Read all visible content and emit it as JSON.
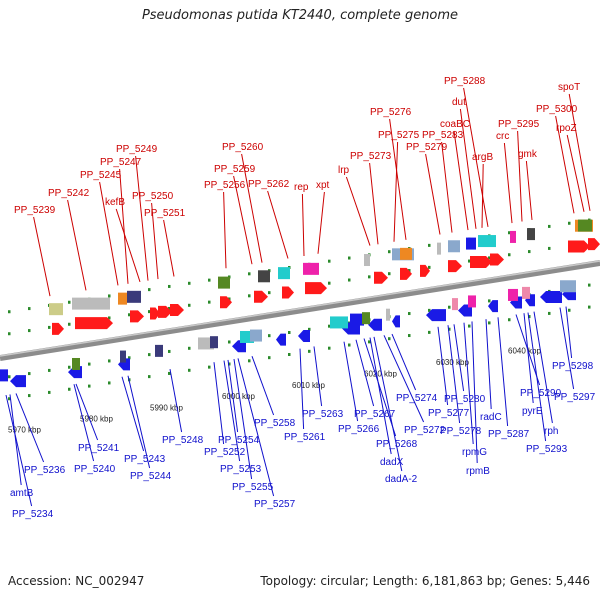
{
  "title": "Pseudomonas putida KT2440, complete genome",
  "accession_label": "Accession: NC_002947",
  "summary": {
    "topology": "circular",
    "length": "6,181,863 bp",
    "genes": "5,446"
  },
  "colors": {
    "forward_label": "#cc0000",
    "reverse_label": "#1010cc",
    "forward_gene": "#ff1a1a",
    "reverse_gene": "#1a1ae6",
    "backbone": "#8c8c8c",
    "tick": "#2a8a2a"
  },
  "scale_labels": [
    "5970 kbp",
    "5980 kbp",
    "5990 kbp",
    "6000 kbp",
    "6010 kbp",
    "6020 kbp",
    "6030 kbp",
    "6040 kbp"
  ],
  "forward_genes": [
    "PP_5239",
    "PP_5242",
    "PP_5245",
    "PP_5247",
    "kefB",
    "PP_5249",
    "PP_5250",
    "PP_5251",
    "PP_5256",
    "PP_5259",
    "PP_5260",
    "PP_5262",
    "rep",
    "xpt",
    "lrp",
    "PP_5273",
    "PP_5275",
    "PP_5276",
    "PP_5279",
    "PP_5283",
    "coaBC",
    "dut",
    "PP_5288",
    "argB",
    "crc",
    "PP_5295",
    "gmk",
    "PP_5300",
    "rpoZ",
    "spoT"
  ],
  "reverse_genes": [
    "amtB",
    "PP_5234",
    "PP_5236",
    "PP_5240",
    "PP_5241",
    "PP_5243",
    "PP_5244",
    "PP_5248",
    "PP_5252",
    "PP_5253",
    "PP_5254",
    "PP_5255",
    "PP_5257",
    "PP_5258",
    "PP_5261",
    "PP_5263",
    "PP_5266",
    "PP_5267",
    "PP_5268",
    "dadX",
    "dadA-2",
    "PP_5272",
    "PP_5274",
    "PP_5277",
    "PP_5278",
    "PP_5280",
    "rpmG",
    "rpmB",
    "radC",
    "PP_5287",
    "PP_5290",
    "pyrE",
    "rph",
    "PP_5293",
    "PP_5297",
    "PP_5298"
  ]
}
